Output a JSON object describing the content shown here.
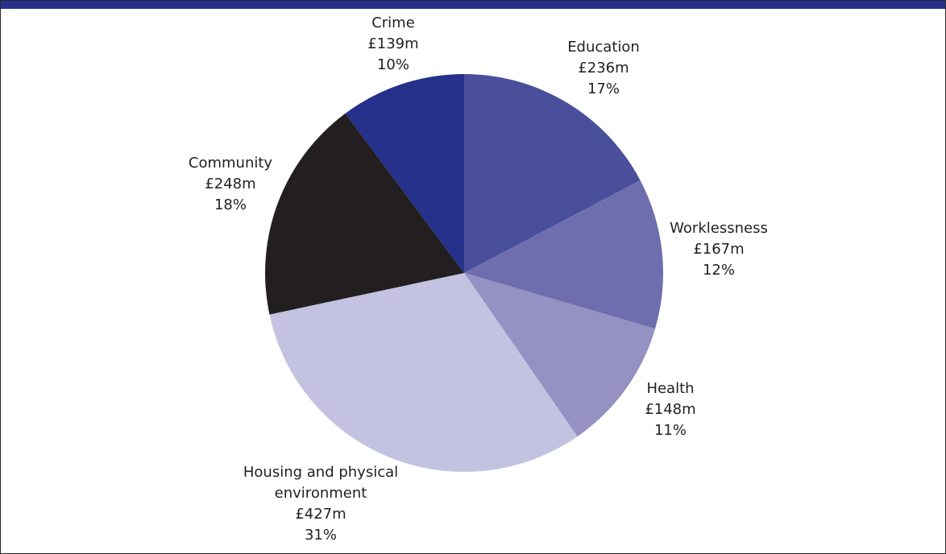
{
  "chart_data": {
    "type": "pie",
    "unit": "£m",
    "slices": [
      {
        "name": "Education",
        "value_label": "£236m",
        "pct_label": "17%",
        "value": 236,
        "percent": 17,
        "color": "#4a4f9c"
      },
      {
        "name": "Worklessness",
        "value_label": "£167m",
        "pct_label": "12%",
        "value": 167,
        "percent": 12,
        "color": "#6e6eae"
      },
      {
        "name": "Health",
        "value_label": "£148m",
        "pct_label": "11%",
        "value": 148,
        "percent": 11,
        "color": "#9591c3"
      },
      {
        "name": "Housing and physical environment",
        "name_lines": [
          "Housing and physical",
          "environment"
        ],
        "value_label": "£427m",
        "pct_label": "31%",
        "value": 427,
        "percent": 31,
        "color": "#c3c2e0"
      },
      {
        "name": "Community",
        "value_label": "£248m",
        "pct_label": "18%",
        "value": 248,
        "percent": 18,
        "color": "#231f20"
      },
      {
        "name": "Crime",
        "value_label": "£139m",
        "pct_label": "10%",
        "value": 139,
        "percent": 10,
        "color": "#25318a"
      }
    ],
    "start": "12 o'clock",
    "direction": "clockwise",
    "legend": "none",
    "colors": {
      "header_bar": "#25318a",
      "border": "#2a2a2a"
    }
  }
}
